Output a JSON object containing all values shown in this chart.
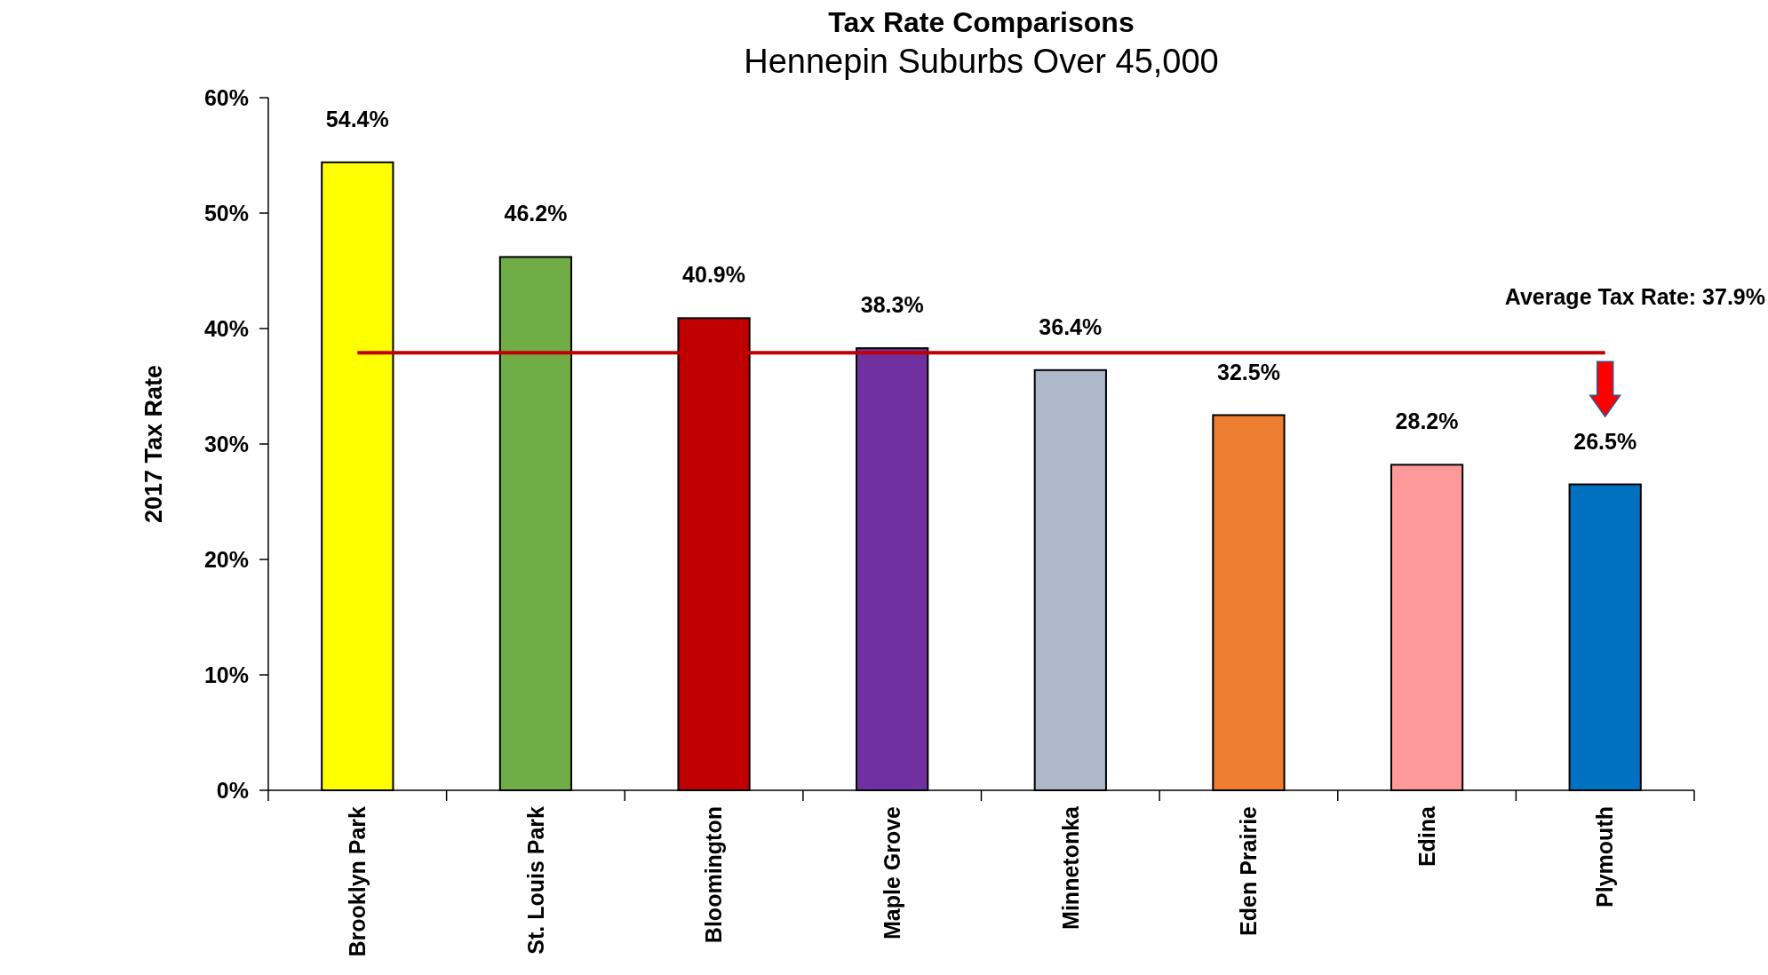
{
  "chart_data": {
    "type": "bar",
    "title": "Tax Rate Comparisons",
    "subtitle": "Hennepin Suburbs Over 45,000",
    "ylabel": "2017 Tax Rate",
    "categories": [
      "Brooklyn Park",
      "St. Louis Park",
      "Bloomington",
      "Maple Grove",
      "Minnetonka",
      "Eden Prairie",
      "Edina",
      "Plymouth"
    ],
    "values": [
      54.4,
      46.2,
      40.9,
      38.3,
      36.4,
      32.5,
      28.2,
      26.5
    ],
    "colors": [
      "#ffff00",
      "#70ad47",
      "#c00000",
      "#7030a0",
      "#adb9ca",
      "#ed7d31",
      "#ff9999",
      "#0070c0"
    ],
    "value_labels": [
      "54.4%",
      "46.2%",
      "40.9%",
      "38.3%",
      "36.4%",
      "32.5%",
      "28.2%",
      "26.5%"
    ],
    "ylim": [
      0,
      60
    ],
    "yticks": [
      {
        "value": 0,
        "label": "0%"
      },
      {
        "value": 10,
        "label": "10%"
      },
      {
        "value": 20,
        "label": "20%"
      },
      {
        "value": 30,
        "label": "30%"
      },
      {
        "value": 40,
        "label": "40%"
      },
      {
        "value": 50,
        "label": "50%"
      },
      {
        "value": 60,
        "label": "60%"
      }
    ],
    "ref_lines": [
      {
        "axis": "y",
        "value": 37.9,
        "label": "Average Tax Rate:  37.9%",
        "color": "#c00000"
      }
    ],
    "grid": false
  }
}
